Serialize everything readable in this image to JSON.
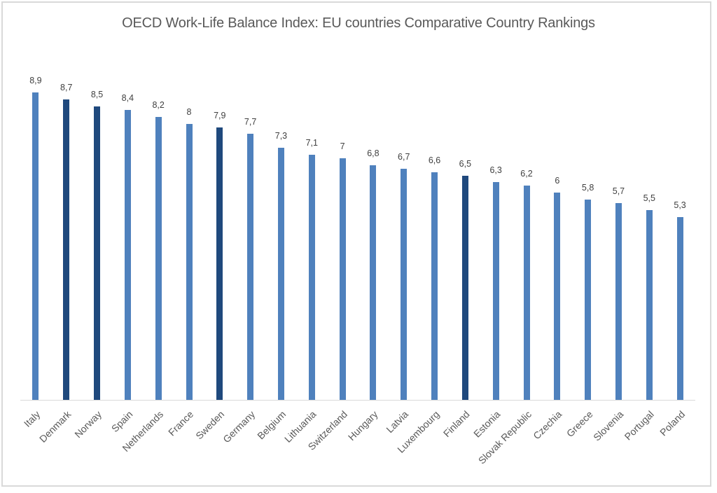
{
  "chart_data": {
    "type": "bar",
    "title": "OECD Work-Life Balance Index: EU countries Comparative Country Rankings",
    "xlabel": "",
    "ylabel": "",
    "ylim": [
      0,
      9.5
    ],
    "grid": false,
    "legend": null,
    "categories": [
      "Italy",
      "Denmark",
      "Norway",
      "Spain",
      "Netherlands",
      "France",
      "Sweden",
      "Germany",
      "Belgium",
      "Lithuania",
      "Switzerland",
      "Hungary",
      "Latvia",
      "Luxembourg",
      "Finland",
      "Estonia",
      "Slovak Republic",
      "Czechia",
      "Greece",
      "Slovenia",
      "Portugal",
      "Poland"
    ],
    "values": [
      8.9,
      8.7,
      8.5,
      8.4,
      8.2,
      8.0,
      7.9,
      7.7,
      7.3,
      7.1,
      7.0,
      6.8,
      6.7,
      6.6,
      6.5,
      6.3,
      6.2,
      6.0,
      5.8,
      5.7,
      5.5,
      5.3
    ],
    "value_labels": [
      "8,9",
      "8,7",
      "8,5",
      "8,4",
      "8,2",
      "8",
      "7,9",
      "7,7",
      "7,3",
      "7,1",
      "7",
      "6,8",
      "6,7",
      "6,6",
      "6,5",
      "6,3",
      "6,2",
      "6",
      "5,8",
      "5,7",
      "5,5",
      "5,3"
    ],
    "highlighted": [
      "Denmark",
      "Norway",
      "Sweden",
      "Finland"
    ],
    "colors": {
      "default": "#4f81bd",
      "highlight": "#1f497d",
      "axis": "#d9d9d9",
      "text": "#595959"
    }
  }
}
